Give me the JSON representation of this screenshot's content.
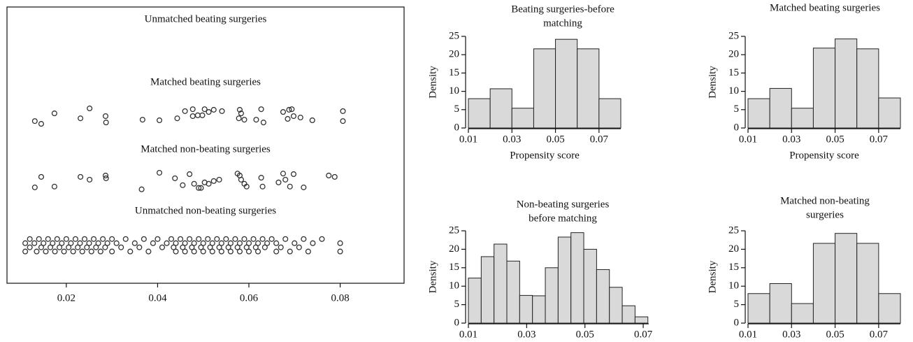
{
  "chart_data": [
    {
      "type": "scatter",
      "xlim": [
        0.007,
        0.094
      ],
      "ylim": [
        0,
        10
      ],
      "xticks": [
        0.02,
        0.04,
        0.06,
        0.08
      ],
      "series": [
        {
          "name": "Unmatched beating surgeries",
          "color": "#333333",
          "x": [],
          "y": []
        },
        {
          "name": "Matched beating surgeries",
          "color": "#333333",
          "x": [
            0.0131,
            0.0145,
            0.0174,
            0.0231,
            0.0251,
            0.0286,
            0.0287,
            0.0367,
            0.0404,
            0.0443,
            0.046,
            0.0477,
            0.0477,
            0.0488,
            0.0498,
            0.0503,
            0.0512,
            0.0523,
            0.0541,
            0.058,
            0.0583,
            0.0578,
            0.059,
            0.0627,
            0.0616,
            0.0632,
            0.0675,
            0.0688,
            0.0694,
            0.0698,
            0.0685,
            0.0713,
            0.0739,
            0.0806,
            0.0806
          ],
          "y": [
            5.87,
            5.77,
            6.15,
            5.97,
            6.33,
            6.05,
            5.82,
            5.92,
            5.9,
            5.97,
            6.23,
            6.3,
            6.05,
            6.08,
            6.08,
            6.3,
            6.2,
            6.28,
            6.23,
            6.28,
            6.15,
            5.97,
            5.92,
            6.3,
            5.92,
            5.82,
            6.2,
            6.28,
            6.3,
            6.05,
            5.95,
            6.0,
            5.9,
            6.23,
            5.87
          ]
        },
        {
          "name": "Matched non-beating surgeries",
          "color": "#333333",
          "x": [
            0.0131,
            0.0145,
            0.0174,
            0.0231,
            0.0251,
            0.0286,
            0.0287,
            0.0365,
            0.0404,
            0.0438,
            0.0455,
            0.047,
            0.048,
            0.049,
            0.0495,
            0.0503,
            0.0512,
            0.0523,
            0.0535,
            0.0575,
            0.058,
            0.0583,
            0.059,
            0.0595,
            0.0627,
            0.063,
            0.0665,
            0.0675,
            0.068,
            0.069,
            0.0698,
            0.072,
            0.0775,
            0.0788
          ],
          "y": [
            3.47,
            3.85,
            3.5,
            3.85,
            3.75,
            3.9,
            3.8,
            3.4,
            4.0,
            3.8,
            3.55,
            3.95,
            3.6,
            3.45,
            3.45,
            3.65,
            3.6,
            3.7,
            3.75,
            3.97,
            3.9,
            3.75,
            3.6,
            3.5,
            3.82,
            3.5,
            3.65,
            3.97,
            3.75,
            3.5,
            3.95,
            3.47,
            3.9,
            3.85
          ]
        },
        {
          "name": "Unmatched non-beating surgeries",
          "color": "#333333",
          "x": [
            0.012,
            0.014,
            0.016,
            0.018,
            0.02,
            0.022,
            0.024,
            0.026,
            0.028,
            0.03,
            0.033,
            0.037,
            0.04,
            0.043,
            0.045,
            0.047,
            0.049,
            0.051,
            0.053,
            0.055,
            0.057,
            0.059,
            0.061,
            0.063,
            0.065,
            0.068,
            0.072,
            0.076,
            0.011,
            0.013,
            0.015,
            0.017,
            0.019,
            0.021,
            0.023,
            0.025,
            0.027,
            0.029,
            0.031,
            0.035,
            0.039,
            0.042,
            0.044,
            0.046,
            0.048,
            0.05,
            0.052,
            0.054,
            0.056,
            0.058,
            0.06,
            0.062,
            0.064,
            0.066,
            0.07,
            0.074,
            0.08,
            0.012,
            0.0145,
            0.0165,
            0.0185,
            0.0205,
            0.0225,
            0.0245,
            0.0265,
            0.0285,
            0.032,
            0.036,
            0.041,
            0.0435,
            0.0455,
            0.0475,
            0.0495,
            0.0515,
            0.0535,
            0.0555,
            0.0575,
            0.0595,
            0.0615,
            0.0635,
            0.067,
            0.071,
            0.011,
            0.0135,
            0.0155,
            0.0175,
            0.0195,
            0.0215,
            0.0235,
            0.0255,
            0.0275,
            0.03,
            0.034,
            0.038,
            0.044,
            0.046,
            0.048,
            0.05,
            0.052,
            0.054,
            0.056,
            0.058,
            0.06,
            0.062,
            0.066,
            0.069,
            0.073,
            0.08
          ],
          "y": [
            1.6,
            1.6,
            1.6,
            1.6,
            1.6,
            1.6,
            1.6,
            1.6,
            1.6,
            1.6,
            1.6,
            1.6,
            1.6,
            1.6,
            1.6,
            1.6,
            1.6,
            1.6,
            1.6,
            1.6,
            1.6,
            1.6,
            1.6,
            1.6,
            1.6,
            1.6,
            1.6,
            1.6,
            1.45,
            1.45,
            1.45,
            1.45,
            1.45,
            1.45,
            1.45,
            1.45,
            1.45,
            1.45,
            1.45,
            1.45,
            1.45,
            1.45,
            1.45,
            1.45,
            1.45,
            1.45,
            1.45,
            1.45,
            1.45,
            1.45,
            1.45,
            1.45,
            1.45,
            1.45,
            1.45,
            1.45,
            1.45,
            1.3,
            1.3,
            1.3,
            1.3,
            1.3,
            1.3,
            1.3,
            1.3,
            1.3,
            1.3,
            1.3,
            1.3,
            1.3,
            1.3,
            1.3,
            1.3,
            1.3,
            1.3,
            1.3,
            1.3,
            1.3,
            1.3,
            1.3,
            1.3,
            1.3,
            1.15,
            1.15,
            1.15,
            1.15,
            1.15,
            1.15,
            1.15,
            1.15,
            1.15,
            1.15,
            1.15,
            1.15,
            1.15,
            1.15,
            1.15,
            1.15,
            1.15,
            1.15,
            1.15,
            1.15,
            1.15,
            1.15,
            1.15,
            1.15,
            1.15,
            1.15
          ]
        }
      ]
    },
    {
      "type": "histogram",
      "title": [
        "Beating surgeries-before",
        "matching"
      ],
      "x_label": "Propensity score",
      "y_label": "Density",
      "bins": [
        0.01,
        0.02,
        0.03,
        0.04,
        0.05,
        0.06,
        0.07,
        0.08
      ],
      "values": [
        8,
        10.7,
        5.4,
        21.6,
        24.2,
        21.6,
        8
      ],
      "color": "#d9d9d9",
      "xlim": [
        0.01,
        0.08
      ],
      "ylim": [
        0,
        25
      ],
      "xticks": [
        0.01,
        0.03,
        0.05,
        0.07
      ],
      "yticks": [
        0,
        5,
        10,
        15,
        20,
        25
      ]
    },
    {
      "type": "histogram",
      "title": [
        "Matched beating surgeries"
      ],
      "x_label": "Propensity score",
      "y_label": "Density",
      "bins": [
        0.01,
        0.02,
        0.03,
        0.04,
        0.05,
        0.06,
        0.07,
        0.08
      ],
      "values": [
        8,
        10.8,
        5.4,
        21.8,
        24.3,
        21.6,
        8.2
      ],
      "color": "#d9d9d9",
      "xlim": [
        0.01,
        0.08
      ],
      "ylim": [
        0,
        25
      ],
      "xticks": [
        0.01,
        0.03,
        0.05,
        0.07
      ],
      "yticks": [
        0,
        5,
        10,
        15,
        20,
        25
      ]
    },
    {
      "type": "histogram",
      "title": [
        "Non-beating surgeries",
        "before matching"
      ],
      "y_label": "Density",
      "bins": [
        0.01,
        0.0144,
        0.0188,
        0.0232,
        0.0276,
        0.032,
        0.0364,
        0.0408,
        0.0452,
        0.0496,
        0.054,
        0.0584,
        0.0628,
        0.0672,
        0.0716
      ],
      "values": [
        12.2,
        18,
        21.4,
        16.8,
        7.5,
        7.4,
        15,
        23.3,
        24.5,
        20,
        14.5,
        9.7,
        4.7,
        1.7
      ],
      "color": "#d9d9d9",
      "xlim": [
        0.01,
        0.0719
      ],
      "ylim": [
        0,
        25
      ],
      "xticks": [
        0.01,
        0.03,
        0.05,
        0.07
      ],
      "yticks": [
        0,
        5,
        10,
        15,
        20,
        25
      ]
    },
    {
      "type": "histogram",
      "title": [
        "Matched non-beating",
        "surgeries"
      ],
      "y_label": "Density",
      "bins": [
        0.01,
        0.02,
        0.03,
        0.04,
        0.05,
        0.06,
        0.07,
        0.08
      ],
      "values": [
        8,
        10.7,
        5.3,
        21.6,
        24.3,
        21.6,
        8
      ],
      "color": "#d9d9d9",
      "xlim": [
        0.01,
        0.08
      ],
      "ylim": [
        0,
        25
      ],
      "xticks": [
        0.01,
        0.03,
        0.05,
        0.07
      ],
      "yticks": [
        0,
        5,
        10,
        15,
        20,
        25
      ]
    }
  ]
}
